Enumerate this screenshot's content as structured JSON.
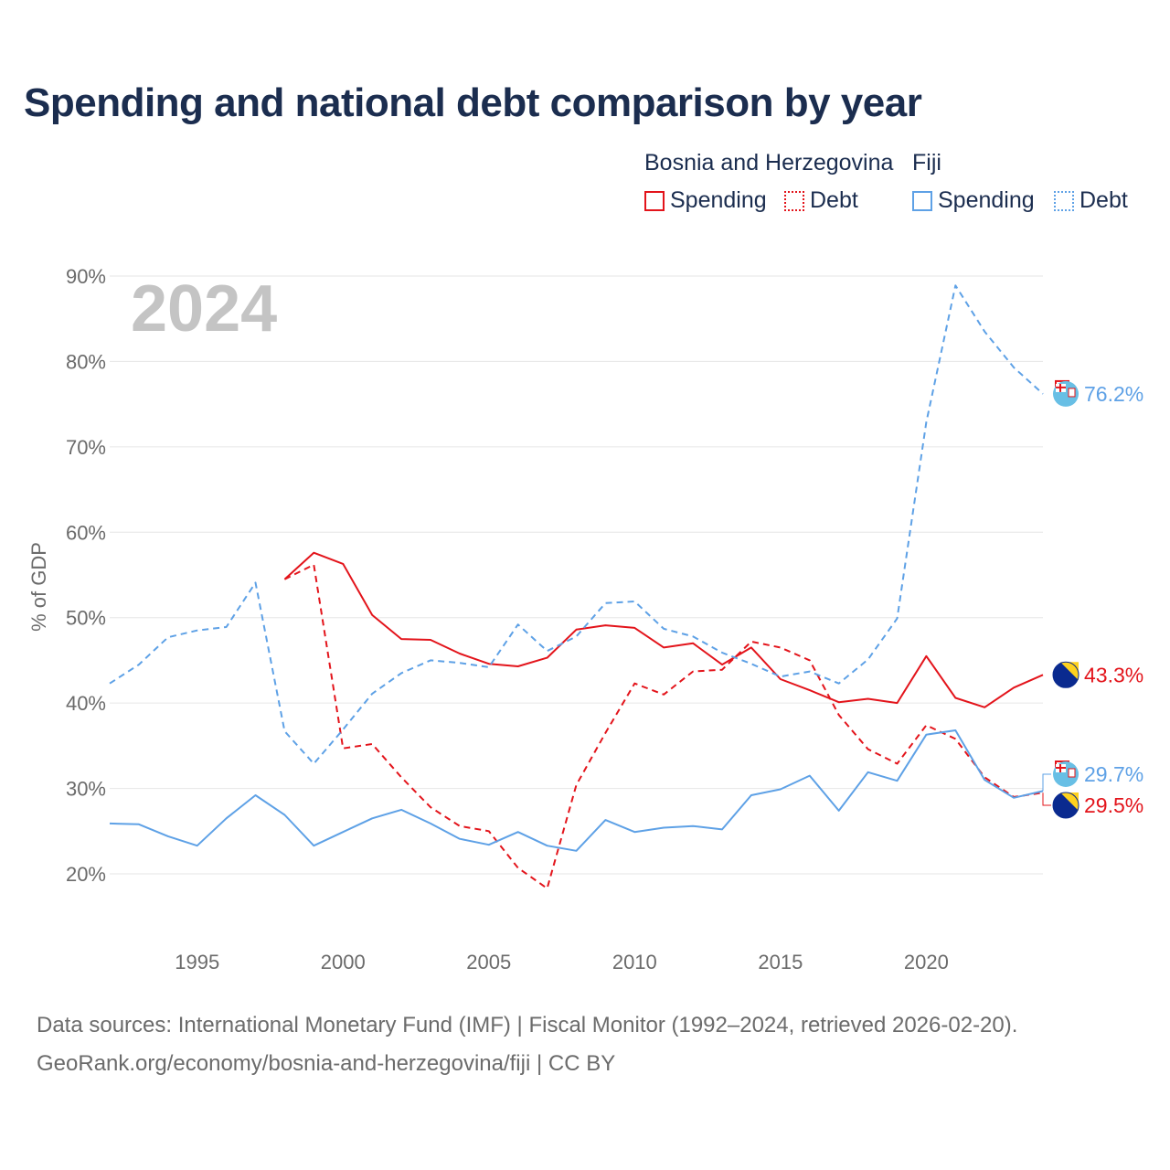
{
  "title": "Spending and national debt comparison by year",
  "legend": {
    "country1": "Bosnia and Herzegovina",
    "country2": "Fiji",
    "c1_spending": "Spending",
    "c1_debt": "Debt",
    "c2_spending": "Spending",
    "c2_debt": "Debt"
  },
  "year_watermark": "2024",
  "footer": {
    "line1": "Data sources: International Monetary Fund (IMF) | Fiscal Monitor (1992–2024, retrieved 2026-02-20).",
    "line2": "GeoRank.org/economy/bosnia-and-herzegovina/fiji | CC BY"
  },
  "colors": {
    "bih": "#e3141b",
    "fiji": "#5ea1e6",
    "grid": "#e6e6e6",
    "text": "#6b6b6b",
    "title": "#1b2d4f"
  },
  "chart_data": {
    "type": "line",
    "ylabel": "% of GDP",
    "xlabel": "",
    "xlim": [
      1992,
      2024
    ],
    "ylim": [
      20,
      90
    ],
    "yticks": [
      20,
      30,
      40,
      50,
      60,
      70,
      80,
      90
    ],
    "ytick_labels": [
      "20%",
      "30%",
      "40%",
      "50%",
      "60%",
      "70%",
      "80%",
      "90%"
    ],
    "xticks": [
      1995,
      2000,
      2005,
      2010,
      2015,
      2020
    ],
    "xtick_labels": [
      "1995",
      "2000",
      "2005",
      "2010",
      "2015",
      "2020"
    ],
    "series": [
      {
        "name": "Bosnia and Herzegovina Spending",
        "country": "Bosnia and Herzegovina",
        "metric": "Spending",
        "color": "#e3141b",
        "style": "solid",
        "x": [
          1998,
          1999,
          2000,
          2001,
          2002,
          2003,
          2004,
          2005,
          2006,
          2007,
          2008,
          2009,
          2010,
          2011,
          2012,
          2013,
          2014,
          2015,
          2016,
          2017,
          2018,
          2019,
          2020,
          2021,
          2022,
          2023,
          2024
        ],
        "values": [
          54.5,
          57.6,
          56.3,
          50.3,
          47.5,
          47.4,
          45.8,
          44.6,
          44.3,
          45.3,
          48.6,
          49.1,
          48.8,
          46.5,
          47.0,
          44.5,
          46.5,
          42.8,
          41.5,
          40.1,
          40.5,
          40.0,
          45.5,
          40.6,
          39.5,
          41.8,
          43.3
        ],
        "end_label": "43.3%"
      },
      {
        "name": "Bosnia and Herzegovina Debt",
        "country": "Bosnia and Herzegovina",
        "metric": "Debt",
        "color": "#e3141b",
        "style": "dashed",
        "x": [
          1998,
          1999,
          2000,
          2001,
          2002,
          2003,
          2004,
          2005,
          2006,
          2007,
          2008,
          2009,
          2010,
          2011,
          2012,
          2013,
          2014,
          2015,
          2016,
          2017,
          2018,
          2019,
          2020,
          2021,
          2022,
          2023,
          2024
        ],
        "values": [
          54.5,
          56.2,
          34.7,
          35.2,
          31.3,
          27.8,
          25.6,
          25.0,
          20.7,
          18.3,
          30.4,
          36.5,
          42.3,
          41.0,
          43.7,
          43.9,
          47.2,
          46.5,
          45.0,
          38.6,
          34.6,
          32.9,
          37.4,
          35.8,
          31.3,
          29.0,
          29.5
        ],
        "end_label": "29.5%"
      },
      {
        "name": "Fiji Spending",
        "country": "Fiji",
        "metric": "Spending",
        "color": "#5ea1e6",
        "style": "solid",
        "x": [
          1992,
          1993,
          1994,
          1995,
          1996,
          1997,
          1998,
          1999,
          2000,
          2001,
          2002,
          2003,
          2004,
          2005,
          2006,
          2007,
          2008,
          2009,
          2010,
          2011,
          2012,
          2013,
          2014,
          2015,
          2016,
          2017,
          2018,
          2019,
          2020,
          2021,
          2022,
          2023,
          2024
        ],
        "values": [
          25.9,
          25.8,
          24.4,
          23.3,
          26.5,
          29.2,
          26.9,
          23.3,
          24.9,
          26.5,
          27.5,
          25.9,
          24.1,
          23.4,
          24.9,
          23.3,
          22.7,
          26.3,
          24.9,
          25.4,
          25.6,
          25.2,
          29.2,
          29.9,
          31.5,
          27.4,
          31.9,
          30.9,
          36.3,
          36.8,
          31.0,
          28.9,
          29.7
        ],
        "end_label": "29.7%"
      },
      {
        "name": "Fiji Debt",
        "country": "Fiji",
        "metric": "Debt",
        "color": "#5ea1e6",
        "style": "dashed",
        "x": [
          1992,
          1993,
          1994,
          1995,
          1996,
          1997,
          1998,
          1999,
          2000,
          2001,
          2002,
          2003,
          2004,
          2005,
          2006,
          2007,
          2008,
          2009,
          2010,
          2011,
          2012,
          2013,
          2014,
          2015,
          2016,
          2017,
          2018,
          2019,
          2020,
          2021,
          2022,
          2023,
          2024
        ],
        "values": [
          42.3,
          44.5,
          47.7,
          48.5,
          48.9,
          54.1,
          36.7,
          32.9,
          36.9,
          41.1,
          43.5,
          45.0,
          44.7,
          44.2,
          49.2,
          46.1,
          47.8,
          51.7,
          51.9,
          48.7,
          47.8,
          45.9,
          44.6,
          43.1,
          43.7,
          42.3,
          45.1,
          49.9,
          72.9,
          88.9,
          83.5,
          79.3,
          76.2
        ],
        "end_label": "76.2%"
      }
    ]
  }
}
